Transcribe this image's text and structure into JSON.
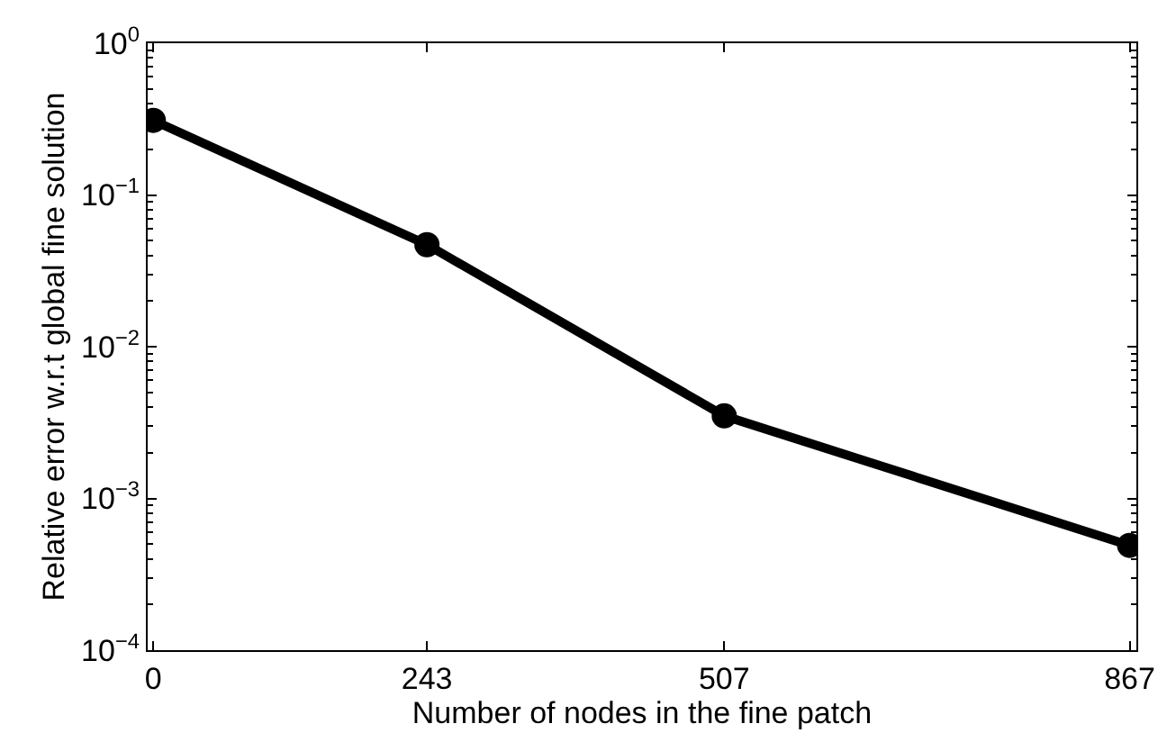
{
  "chart_data": {
    "type": "line",
    "xlabel": "Number of nodes in the fine patch",
    "ylabel": "Relative error w.r.t global fine solution",
    "x": [
      0,
      243,
      507,
      867
    ],
    "series": [
      {
        "color": "#000000",
        "values": [
          0.31,
          0.047,
          0.0035,
          0.00049
        ]
      }
    ],
    "xlim": [
      -5,
      873
    ],
    "xticks": [
      0,
      243,
      507,
      867
    ],
    "ylim": [
      0.0001,
      1
    ],
    "yticks": [
      {
        "value": 0.0001,
        "label": "10$^{−4}$"
      },
      {
        "value": 0.001,
        "label": "10$^{−3}$"
      },
      {
        "value": 0.01,
        "label": "10$^{−2}$"
      },
      {
        "value": 0.1,
        "label": "10$^{−1}$"
      },
      {
        "value": 1,
        "label": "10$^{0}$"
      }
    ],
    "log": "y",
    "marker": "circle",
    "line_style": "solid"
  }
}
